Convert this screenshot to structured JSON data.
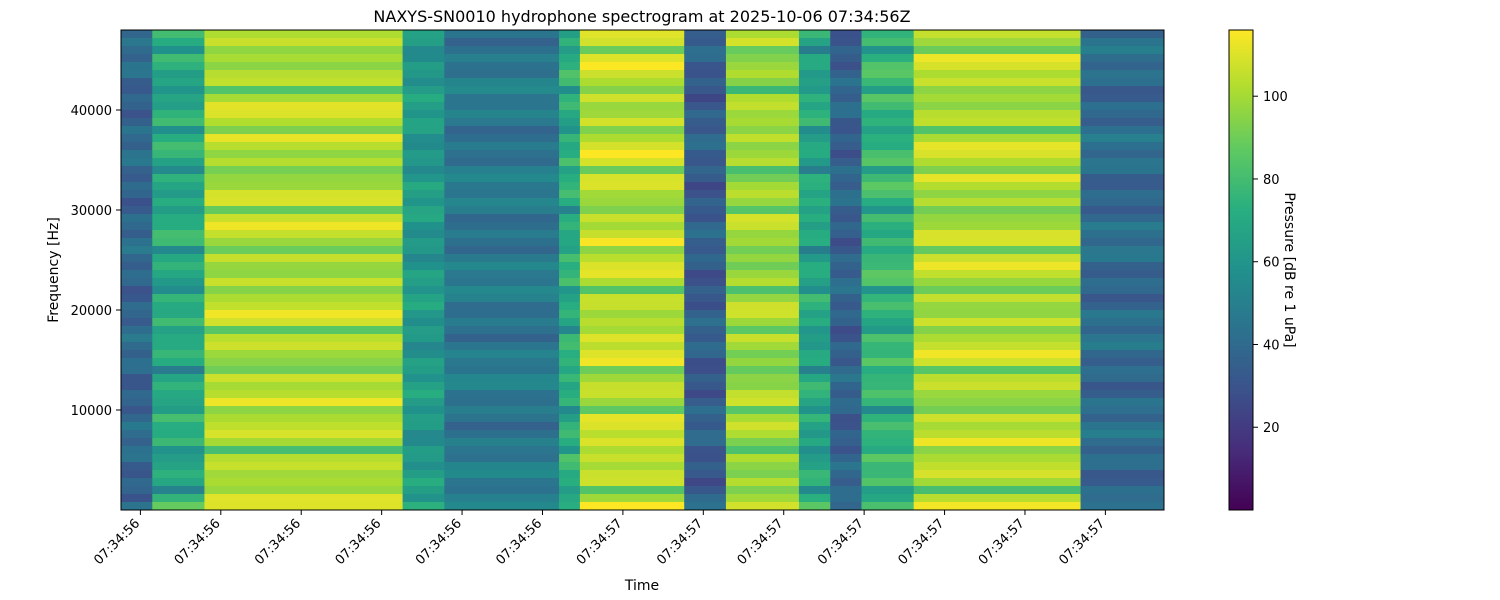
{
  "chart_data": {
    "type": "heatmap",
    "title": "NAXYS-SN0010 hydrophone spectrogram at 2025-10-06 07:34:56Z",
    "xlabel": "Time",
    "ylabel": "Frequency [Hz]",
    "colorbar_label": "Pressure [dB re 1 uPa]",
    "colormap": "viridis",
    "x_tick_labels": [
      "07:34:56",
      "07:34:56",
      "07:34:56",
      "07:34:56",
      "07:34:56",
      "07:34:56",
      "07:34:57",
      "07:34:57",
      "07:34:57",
      "07:34:57",
      "07:34:57",
      "07:34:57",
      "07:34:57"
    ],
    "y_ticks": [
      10000,
      20000,
      30000,
      40000
    ],
    "y_tick_labels": [
      "10000",
      "20000",
      "30000",
      "40000"
    ],
    "ylim": [
      0,
      48000
    ],
    "colorbar_ticks": [
      20,
      40,
      60,
      80,
      100
    ],
    "colorbar_tick_labels": [
      "20",
      "40",
      "60",
      "80",
      "100"
    ],
    "clim": [
      0,
      116
    ],
    "time_segments": [
      {
        "start": 0.0,
        "end": 0.03,
        "level_db": 38
      },
      {
        "start": 0.03,
        "end": 0.08,
        "level_db": 72
      },
      {
        "start": 0.08,
        "end": 0.27,
        "level_db": 104
      },
      {
        "start": 0.27,
        "end": 0.31,
        "level_db": 62
      },
      {
        "start": 0.31,
        "end": 0.42,
        "level_db": 46
      },
      {
        "start": 0.42,
        "end": 0.44,
        "level_db": 74
      },
      {
        "start": 0.44,
        "end": 0.54,
        "level_db": 106
      },
      {
        "start": 0.54,
        "end": 0.58,
        "level_db": 34
      },
      {
        "start": 0.58,
        "end": 0.65,
        "level_db": 100
      },
      {
        "start": 0.65,
        "end": 0.68,
        "level_db": 70
      },
      {
        "start": 0.68,
        "end": 0.71,
        "level_db": 36
      },
      {
        "start": 0.71,
        "end": 0.76,
        "level_db": 78
      },
      {
        "start": 0.76,
        "end": 0.92,
        "level_db": 104
      },
      {
        "start": 0.92,
        "end": 1.0,
        "level_db": 40
      }
    ]
  }
}
